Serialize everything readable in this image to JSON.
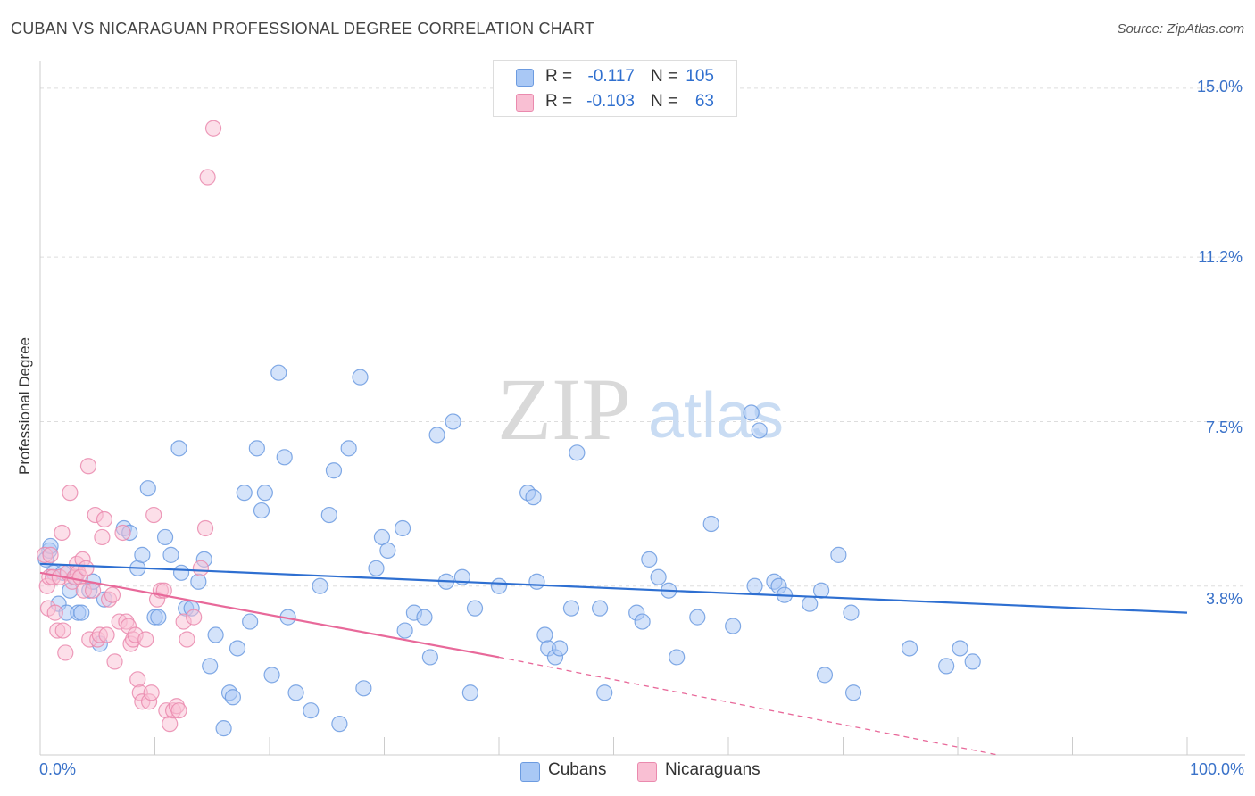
{
  "title": "CUBAN VS NICARAGUAN PROFESSIONAL DEGREE CORRELATION CHART",
  "source": "Source: ZipAtlas.com",
  "watermark": {
    "zip": "ZIP",
    "atlas": "atlas"
  },
  "legend_top": [
    {
      "r_label": "R =",
      "r_value": "-0.117",
      "n_label": "N =",
      "n_value": "105",
      "color": "#a9c8f5",
      "border": "#6c9be0"
    },
    {
      "r_label": "R =",
      "r_value": "-0.103",
      "n_label": "N =",
      "n_value": "63",
      "color": "#f9bfd3",
      "border": "#ea8aae"
    }
  ],
  "legend_bottom": [
    {
      "label": "Cubans",
      "color": "#a9c8f5",
      "border": "#6c9be0"
    },
    {
      "label": "Nicaraguans",
      "color": "#f9bfd3",
      "border": "#ea8aae"
    }
  ],
  "x_tick_labels": {
    "left": "0.0%",
    "right": "100.0%"
  },
  "y_tick_labels": [
    "15.0%",
    "11.2%",
    "7.5%",
    "3.8%"
  ],
  "chart_data": {
    "type": "scatter",
    "title": "CUBAN VS NICARAGUAN PROFESSIONAL DEGREE CORRELATION CHART",
    "xlabel": "",
    "ylabel": "Professional Degree",
    "xlim": [
      0,
      100
    ],
    "ylim": [
      0,
      15.4
    ],
    "y_ticks": [
      3.8,
      7.5,
      11.2,
      15.0
    ],
    "x_ticks": [
      0,
      10,
      20,
      30,
      40,
      50,
      60,
      70,
      80,
      90,
      100
    ],
    "grid": true,
    "series": [
      {
        "name": "Cubans",
        "color": "#6c9be0",
        "fill": "#a9c8f5",
        "trend": {
          "x0": 0,
          "y0": 4.3,
          "x1": 100,
          "y1": 3.2
        },
        "points": [
          [
            0.5,
            4.4
          ],
          [
            0.8,
            4.6
          ],
          [
            0.9,
            4.7
          ],
          [
            1.2,
            4.1
          ],
          [
            1.6,
            3.4
          ],
          [
            2.0,
            4.1
          ],
          [
            2.3,
            3.2
          ],
          [
            2.6,
            3.7
          ],
          [
            3.1,
            4.0
          ],
          [
            3.3,
            3.2
          ],
          [
            3.6,
            3.2
          ],
          [
            4.3,
            3.7
          ],
          [
            4.6,
            3.9
          ],
          [
            5.2,
            2.5
          ],
          [
            5.6,
            3.5
          ],
          [
            7.3,
            5.1
          ],
          [
            7.8,
            5.0
          ],
          [
            8.5,
            4.2
          ],
          [
            8.9,
            4.5
          ],
          [
            9.4,
            6.0
          ],
          [
            10.0,
            3.1
          ],
          [
            10.3,
            3.1
          ],
          [
            10.9,
            4.9
          ],
          [
            11.4,
            4.5
          ],
          [
            12.1,
            6.9
          ],
          [
            12.3,
            4.1
          ],
          [
            12.7,
            3.3
          ],
          [
            13.2,
            3.3
          ],
          [
            13.8,
            3.9
          ],
          [
            14.3,
            4.4
          ],
          [
            14.8,
            2.0
          ],
          [
            15.3,
            2.7
          ],
          [
            16.0,
            0.6
          ],
          [
            16.5,
            1.4
          ],
          [
            16.8,
            1.3
          ],
          [
            17.2,
            2.4
          ],
          [
            17.8,
            5.9
          ],
          [
            18.3,
            3.0
          ],
          [
            18.9,
            6.9
          ],
          [
            19.3,
            5.5
          ],
          [
            19.6,
            5.9
          ],
          [
            20.2,
            1.8
          ],
          [
            20.8,
            8.6
          ],
          [
            21.3,
            6.7
          ],
          [
            21.6,
            3.1
          ],
          [
            22.3,
            1.4
          ],
          [
            23.6,
            1.0
          ],
          [
            24.4,
            3.8
          ],
          [
            25.2,
            5.4
          ],
          [
            25.6,
            6.4
          ],
          [
            26.1,
            0.7
          ],
          [
            26.9,
            6.9
          ],
          [
            27.9,
            8.5
          ],
          [
            28.2,
            1.5
          ],
          [
            29.3,
            4.2
          ],
          [
            29.8,
            4.9
          ],
          [
            30.3,
            4.6
          ],
          [
            31.6,
            5.1
          ],
          [
            31.8,
            2.8
          ],
          [
            32.6,
            3.2
          ],
          [
            33.5,
            3.1
          ],
          [
            34.0,
            2.2
          ],
          [
            34.6,
            7.2
          ],
          [
            35.4,
            3.9
          ],
          [
            36.0,
            7.5
          ],
          [
            36.8,
            4.0
          ],
          [
            37.5,
            1.4
          ],
          [
            37.9,
            3.3
          ],
          [
            40.0,
            3.8
          ],
          [
            42.5,
            5.9
          ],
          [
            43.0,
            5.8
          ],
          [
            43.3,
            3.9
          ],
          [
            44.0,
            2.7
          ],
          [
            44.3,
            2.4
          ],
          [
            44.9,
            2.2
          ],
          [
            45.3,
            2.4
          ],
          [
            46.3,
            3.3
          ],
          [
            46.8,
            6.8
          ],
          [
            48.8,
            3.3
          ],
          [
            49.2,
            1.4
          ],
          [
            52.0,
            3.2
          ],
          [
            52.5,
            3.0
          ],
          [
            53.1,
            4.4
          ],
          [
            53.9,
            4.0
          ],
          [
            54.8,
            3.7
          ],
          [
            55.5,
            2.2
          ],
          [
            57.3,
            3.1
          ],
          [
            58.5,
            5.2
          ],
          [
            60.4,
            2.9
          ],
          [
            62.0,
            7.7
          ],
          [
            62.3,
            3.8
          ],
          [
            62.7,
            7.3
          ],
          [
            64.0,
            3.9
          ],
          [
            64.4,
            3.8
          ],
          [
            64.9,
            3.6
          ],
          [
            67.1,
            3.4
          ],
          [
            68.1,
            3.7
          ],
          [
            68.4,
            1.8
          ],
          [
            69.6,
            4.5
          ],
          [
            70.7,
            3.2
          ],
          [
            70.9,
            1.4
          ],
          [
            75.8,
            2.4
          ],
          [
            79.0,
            2.0
          ],
          [
            80.2,
            2.4
          ],
          [
            81.3,
            2.1
          ]
        ]
      },
      {
        "name": "Nicaraguans",
        "color": "#ea8aae",
        "fill": "#f9bfd3",
        "trend": {
          "x0": 0,
          "y0": 4.1,
          "x1": 40,
          "y1": 2.2
        },
        "trend_extension": {
          "x0": 40,
          "y0": 2.2,
          "x1": 83.5,
          "y1": 0.0
        },
        "points": [
          [
            0.4,
            4.5
          ],
          [
            0.6,
            3.8
          ],
          [
            0.7,
            3.3
          ],
          [
            0.8,
            4.0
          ],
          [
            0.9,
            4.5
          ],
          [
            1.1,
            4.0
          ],
          [
            1.3,
            3.2
          ],
          [
            1.5,
            2.8
          ],
          [
            1.7,
            4.0
          ],
          [
            1.9,
            5.0
          ],
          [
            2.0,
            2.8
          ],
          [
            2.2,
            2.3
          ],
          [
            2.4,
            4.1
          ],
          [
            2.6,
            5.9
          ],
          [
            2.8,
            3.9
          ],
          [
            3.0,
            4.0
          ],
          [
            3.2,
            4.3
          ],
          [
            3.3,
            4.1
          ],
          [
            3.5,
            4.0
          ],
          [
            3.7,
            4.4
          ],
          [
            3.8,
            3.7
          ],
          [
            4.0,
            4.2
          ],
          [
            4.2,
            6.5
          ],
          [
            4.3,
            2.6
          ],
          [
            4.6,
            3.7
          ],
          [
            4.8,
            5.4
          ],
          [
            5.0,
            2.6
          ],
          [
            5.2,
            2.7
          ],
          [
            5.4,
            4.9
          ],
          [
            5.6,
            5.3
          ],
          [
            5.8,
            2.7
          ],
          [
            6.0,
            3.5
          ],
          [
            6.3,
            3.6
          ],
          [
            6.5,
            2.1
          ],
          [
            6.9,
            3.0
          ],
          [
            7.2,
            5.0
          ],
          [
            7.5,
            3.0
          ],
          [
            7.7,
            2.9
          ],
          [
            7.9,
            2.5
          ],
          [
            8.1,
            2.6
          ],
          [
            8.3,
            2.7
          ],
          [
            8.5,
            1.7
          ],
          [
            8.7,
            1.4
          ],
          [
            8.9,
            1.2
          ],
          [
            9.2,
            2.6
          ],
          [
            9.5,
            1.2
          ],
          [
            9.7,
            1.4
          ],
          [
            9.9,
            5.4
          ],
          [
            10.2,
            3.5
          ],
          [
            10.5,
            3.7
          ],
          [
            10.8,
            3.7
          ],
          [
            11.0,
            1.0
          ],
          [
            11.3,
            0.7
          ],
          [
            11.6,
            1.0
          ],
          [
            11.9,
            1.1
          ],
          [
            12.1,
            1.0
          ],
          [
            12.5,
            3.0
          ],
          [
            12.8,
            2.6
          ],
          [
            13.4,
            3.1
          ],
          [
            14.0,
            4.2
          ],
          [
            14.4,
            5.1
          ],
          [
            14.6,
            13.0
          ],
          [
            15.1,
            14.1
          ]
        ]
      }
    ]
  }
}
